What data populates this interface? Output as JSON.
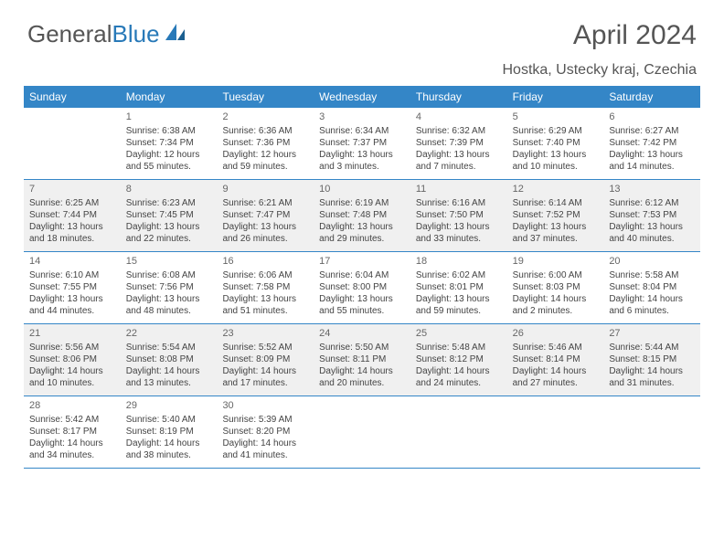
{
  "brand": {
    "part1": "General",
    "part2": "Blue"
  },
  "title": "April 2024",
  "location": "Hostka, Ustecky kraj, Czechia",
  "colors": {
    "header_bg": "#3486c7",
    "header_text": "#ffffff",
    "shaded_bg": "#f0f0f0",
    "border": "#3486c7",
    "text": "#444444",
    "title_color": "#555555"
  },
  "dayNames": [
    "Sunday",
    "Monday",
    "Tuesday",
    "Wednesday",
    "Thursday",
    "Friday",
    "Saturday"
  ],
  "weeks": [
    [
      {
        "n": "",
        "shaded": false,
        "lines": []
      },
      {
        "n": "1",
        "shaded": false,
        "lines": [
          "Sunrise: 6:38 AM",
          "Sunset: 7:34 PM",
          "Daylight: 12 hours",
          "and 55 minutes."
        ]
      },
      {
        "n": "2",
        "shaded": false,
        "lines": [
          "Sunrise: 6:36 AM",
          "Sunset: 7:36 PM",
          "Daylight: 12 hours",
          "and 59 minutes."
        ]
      },
      {
        "n": "3",
        "shaded": false,
        "lines": [
          "Sunrise: 6:34 AM",
          "Sunset: 7:37 PM",
          "Daylight: 13 hours",
          "and 3 minutes."
        ]
      },
      {
        "n": "4",
        "shaded": false,
        "lines": [
          "Sunrise: 6:32 AM",
          "Sunset: 7:39 PM",
          "Daylight: 13 hours",
          "and 7 minutes."
        ]
      },
      {
        "n": "5",
        "shaded": false,
        "lines": [
          "Sunrise: 6:29 AM",
          "Sunset: 7:40 PM",
          "Daylight: 13 hours",
          "and 10 minutes."
        ]
      },
      {
        "n": "6",
        "shaded": false,
        "lines": [
          "Sunrise: 6:27 AM",
          "Sunset: 7:42 PM",
          "Daylight: 13 hours",
          "and 14 minutes."
        ]
      }
    ],
    [
      {
        "n": "7",
        "shaded": true,
        "lines": [
          "Sunrise: 6:25 AM",
          "Sunset: 7:44 PM",
          "Daylight: 13 hours",
          "and 18 minutes."
        ]
      },
      {
        "n": "8",
        "shaded": true,
        "lines": [
          "Sunrise: 6:23 AM",
          "Sunset: 7:45 PM",
          "Daylight: 13 hours",
          "and 22 minutes."
        ]
      },
      {
        "n": "9",
        "shaded": true,
        "lines": [
          "Sunrise: 6:21 AM",
          "Sunset: 7:47 PM",
          "Daylight: 13 hours",
          "and 26 minutes."
        ]
      },
      {
        "n": "10",
        "shaded": true,
        "lines": [
          "Sunrise: 6:19 AM",
          "Sunset: 7:48 PM",
          "Daylight: 13 hours",
          "and 29 minutes."
        ]
      },
      {
        "n": "11",
        "shaded": true,
        "lines": [
          "Sunrise: 6:16 AM",
          "Sunset: 7:50 PM",
          "Daylight: 13 hours",
          "and 33 minutes."
        ]
      },
      {
        "n": "12",
        "shaded": true,
        "lines": [
          "Sunrise: 6:14 AM",
          "Sunset: 7:52 PM",
          "Daylight: 13 hours",
          "and 37 minutes."
        ]
      },
      {
        "n": "13",
        "shaded": true,
        "lines": [
          "Sunrise: 6:12 AM",
          "Sunset: 7:53 PM",
          "Daylight: 13 hours",
          "and 40 minutes."
        ]
      }
    ],
    [
      {
        "n": "14",
        "shaded": false,
        "lines": [
          "Sunrise: 6:10 AM",
          "Sunset: 7:55 PM",
          "Daylight: 13 hours",
          "and 44 minutes."
        ]
      },
      {
        "n": "15",
        "shaded": false,
        "lines": [
          "Sunrise: 6:08 AM",
          "Sunset: 7:56 PM",
          "Daylight: 13 hours",
          "and 48 minutes."
        ]
      },
      {
        "n": "16",
        "shaded": false,
        "lines": [
          "Sunrise: 6:06 AM",
          "Sunset: 7:58 PM",
          "Daylight: 13 hours",
          "and 51 minutes."
        ]
      },
      {
        "n": "17",
        "shaded": false,
        "lines": [
          "Sunrise: 6:04 AM",
          "Sunset: 8:00 PM",
          "Daylight: 13 hours",
          "and 55 minutes."
        ]
      },
      {
        "n": "18",
        "shaded": false,
        "lines": [
          "Sunrise: 6:02 AM",
          "Sunset: 8:01 PM",
          "Daylight: 13 hours",
          "and 59 minutes."
        ]
      },
      {
        "n": "19",
        "shaded": false,
        "lines": [
          "Sunrise: 6:00 AM",
          "Sunset: 8:03 PM",
          "Daylight: 14 hours",
          "and 2 minutes."
        ]
      },
      {
        "n": "20",
        "shaded": false,
        "lines": [
          "Sunrise: 5:58 AM",
          "Sunset: 8:04 PM",
          "Daylight: 14 hours",
          "and 6 minutes."
        ]
      }
    ],
    [
      {
        "n": "21",
        "shaded": true,
        "lines": [
          "Sunrise: 5:56 AM",
          "Sunset: 8:06 PM",
          "Daylight: 14 hours",
          "and 10 minutes."
        ]
      },
      {
        "n": "22",
        "shaded": true,
        "lines": [
          "Sunrise: 5:54 AM",
          "Sunset: 8:08 PM",
          "Daylight: 14 hours",
          "and 13 minutes."
        ]
      },
      {
        "n": "23",
        "shaded": true,
        "lines": [
          "Sunrise: 5:52 AM",
          "Sunset: 8:09 PM",
          "Daylight: 14 hours",
          "and 17 minutes."
        ]
      },
      {
        "n": "24",
        "shaded": true,
        "lines": [
          "Sunrise: 5:50 AM",
          "Sunset: 8:11 PM",
          "Daylight: 14 hours",
          "and 20 minutes."
        ]
      },
      {
        "n": "25",
        "shaded": true,
        "lines": [
          "Sunrise: 5:48 AM",
          "Sunset: 8:12 PM",
          "Daylight: 14 hours",
          "and 24 minutes."
        ]
      },
      {
        "n": "26",
        "shaded": true,
        "lines": [
          "Sunrise: 5:46 AM",
          "Sunset: 8:14 PM",
          "Daylight: 14 hours",
          "and 27 minutes."
        ]
      },
      {
        "n": "27",
        "shaded": true,
        "lines": [
          "Sunrise: 5:44 AM",
          "Sunset: 8:15 PM",
          "Daylight: 14 hours",
          "and 31 minutes."
        ]
      }
    ],
    [
      {
        "n": "28",
        "shaded": false,
        "lines": [
          "Sunrise: 5:42 AM",
          "Sunset: 8:17 PM",
          "Daylight: 14 hours",
          "and 34 minutes."
        ]
      },
      {
        "n": "29",
        "shaded": false,
        "lines": [
          "Sunrise: 5:40 AM",
          "Sunset: 8:19 PM",
          "Daylight: 14 hours",
          "and 38 minutes."
        ]
      },
      {
        "n": "30",
        "shaded": false,
        "lines": [
          "Sunrise: 5:39 AM",
          "Sunset: 8:20 PM",
          "Daylight: 14 hours",
          "and 41 minutes."
        ]
      },
      {
        "n": "",
        "shaded": false,
        "lines": []
      },
      {
        "n": "",
        "shaded": false,
        "lines": []
      },
      {
        "n": "",
        "shaded": false,
        "lines": []
      },
      {
        "n": "",
        "shaded": false,
        "lines": []
      }
    ]
  ]
}
